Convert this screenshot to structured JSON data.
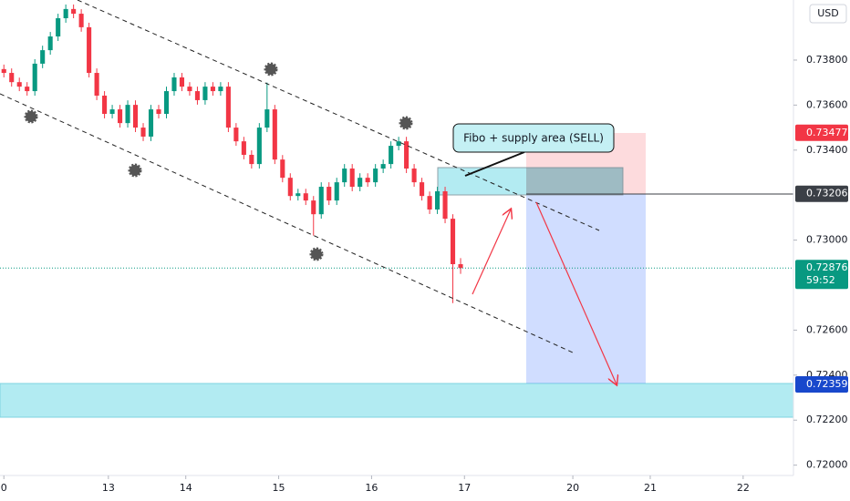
{
  "chart_data": {
    "type": "candlestick",
    "x": [
      1,
      3,
      5,
      7,
      9,
      11,
      13,
      15,
      17,
      19,
      21,
      23,
      25,
      27,
      29,
      31,
      33,
      35,
      37,
      39,
      41,
      43,
      45,
      47,
      49,
      51,
      53,
      55,
      57,
      59,
      61,
      63,
      65,
      67,
      69,
      71,
      73,
      75,
      77,
      79,
      81,
      83,
      85,
      87,
      89,
      91,
      93,
      95,
      97,
      99,
      101,
      103,
      105,
      107,
      109,
      111,
      113,
      115,
      117,
      119
    ],
    "open": [
      0.7376,
      0.73743,
      0.73702,
      0.73682,
      0.73662,
      0.73784,
      0.73844,
      0.73905,
      0.73986,
      0.74027,
      0.74006,
      0.73946,
      0.73743,
      0.73642,
      0.73561,
      0.73581,
      0.7352,
      0.73601,
      0.735,
      0.7346,
      0.73581,
      0.73561,
      0.73662,
      0.73723,
      0.73682,
      0.73662,
      0.73622,
      0.73682,
      0.73662,
      0.73682,
      0.735,
      0.73439,
      0.73379,
      0.73338,
      0.735,
      0.73581,
      0.73358,
      0.73277,
      0.73196,
      0.73208,
      0.73176,
      0.73115,
      0.73237,
      0.73176,
      0.73257,
      0.73318,
      0.73237,
      0.73277,
      0.73257,
      0.73318,
      0.73338,
      0.73419,
      0.73439,
      0.73318,
      0.73257,
      0.73196,
      0.73136,
      0.73217,
      0.73095,
      0.72893
    ],
    "high": [
      0.7378,
      0.73763,
      0.73722,
      0.73702,
      0.73804,
      0.73864,
      0.73925,
      0.74006,
      0.74047,
      0.74047,
      0.74026,
      0.73966,
      0.73763,
      0.73662,
      0.73601,
      0.73601,
      0.73621,
      0.73621,
      0.7352,
      0.73601,
      0.73601,
      0.73682,
      0.73743,
      0.73743,
      0.73702,
      0.73682,
      0.73702,
      0.73702,
      0.73702,
      0.73702,
      0.7352,
      0.73459,
      0.73399,
      0.7352,
      0.737,
      0.73601,
      0.73378,
      0.73297,
      0.73228,
      0.73228,
      0.73196,
      0.73257,
      0.73257,
      0.73277,
      0.73338,
      0.73338,
      0.73297,
      0.73297,
      0.73338,
      0.73358,
      0.73439,
      0.73459,
      0.73459,
      0.73338,
      0.73277,
      0.73216,
      0.73237,
      0.73237,
      0.73115,
      0.7292
    ],
    "low": [
      0.73723,
      0.73682,
      0.73662,
      0.73642,
      0.73642,
      0.73764,
      0.73824,
      0.73885,
      0.73966,
      0.73986,
      0.73926,
      0.73723,
      0.73622,
      0.73541,
      0.73541,
      0.735,
      0.735,
      0.7348,
      0.7344,
      0.7344,
      0.73541,
      0.73541,
      0.73642,
      0.73662,
      0.73642,
      0.73602,
      0.73602,
      0.73642,
      0.73642,
      0.7348,
      0.73419,
      0.73359,
      0.73318,
      0.73318,
      0.7348,
      0.73338,
      0.73257,
      0.73176,
      0.73176,
      0.73156,
      0.7302,
      0.73095,
      0.73156,
      0.73156,
      0.73237,
      0.73217,
      0.73217,
      0.73237,
      0.73237,
      0.73298,
      0.73318,
      0.73399,
      0.73298,
      0.73237,
      0.73176,
      0.73116,
      0.73116,
      0.73075,
      0.7272,
      0.7285
    ],
    "close": [
      0.73743,
      0.73702,
      0.73682,
      0.73662,
      0.73784,
      0.73844,
      0.73905,
      0.73986,
      0.74027,
      0.74006,
      0.73946,
      0.73743,
      0.73642,
      0.73561,
      0.73581,
      0.7352,
      0.73601,
      0.735,
      0.7346,
      0.73581,
      0.73561,
      0.73662,
      0.73723,
      0.73682,
      0.73662,
      0.73622,
      0.73682,
      0.73662,
      0.73682,
      0.735,
      0.73439,
      0.73379,
      0.73338,
      0.735,
      0.73581,
      0.73358,
      0.73277,
      0.73196,
      0.73208,
      0.73176,
      0.73115,
      0.73237,
      0.73176,
      0.73257,
      0.73318,
      0.73237,
      0.73277,
      0.73257,
      0.73318,
      0.73338,
      0.73419,
      0.73439,
      0.73318,
      0.73257,
      0.73196,
      0.73136,
      0.73217,
      0.73095,
      0.72893,
      0.72876
    ],
    "up_color": "#089981",
    "down_color": "#f23645",
    "xlim": [
      0,
      205
    ],
    "xticks": [
      {
        "value": 1,
        "label": "0"
      },
      {
        "value": 28,
        "label": "13"
      },
      {
        "value": 48,
        "label": "14"
      },
      {
        "value": 72,
        "label": "15"
      },
      {
        "value": 96,
        "label": "16"
      },
      {
        "value": 120,
        "label": "17"
      },
      {
        "value": 148,
        "label": "20"
      },
      {
        "value": 168,
        "label": "21"
      },
      {
        "value": 192,
        "label": "22"
      }
    ],
    "ylim": [
      0.71954,
      0.74067
    ],
    "yticks": [
      {
        "value": 0.738,
        "label": "0.73800"
      },
      {
        "value": 0.736,
        "label": "0.73600"
      },
      {
        "value": 0.734,
        "label": "0.73400"
      },
      {
        "value": 0.73,
        "label": "0.73000"
      },
      {
        "value": 0.726,
        "label": "0.72600"
      },
      {
        "value": 0.724,
        "label": "0.72400"
      },
      {
        "value": 0.722,
        "label": "0.72200"
      },
      {
        "value": 0.72,
        "label": "0.72000"
      }
    ],
    "currency": "USD",
    "annotation": "Fibo + supply area (SELL)",
    "price_tags": [
      {
        "value": 0.73477,
        "color": "#f23645"
      },
      {
        "value": 0.73206,
        "color": "#3b3f46"
      },
      {
        "value": 0.72876,
        "color": "#089981",
        "countdown": "59:52"
      },
      {
        "value": 0.72359,
        "color": "#1848cc"
      }
    ]
  }
}
